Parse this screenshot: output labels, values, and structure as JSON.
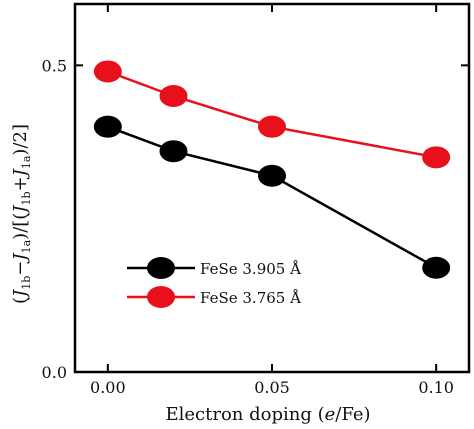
{
  "chart_data": {
    "type": "line",
    "x": [
      0.0,
      0.02,
      0.05,
      0.1
    ],
    "xlim": [
      -0.01,
      0.11
    ],
    "ylim": [
      0.0,
      0.6
    ],
    "xticks": [
      0.0,
      0.05,
      0.1
    ],
    "xtick_labels": [
      "0.00",
      "0.05",
      "0.10"
    ],
    "yticks": [
      0.0,
      0.5
    ],
    "ytick_labels": [
      "0.0",
      "0.5"
    ],
    "xlabel": "Electron doping (e/Fe)",
    "ylabel": "(J1b−J1a)/[(J1b+J1a)/2]",
    "grid": false,
    "legend_position": "lower-left",
    "series": [
      {
        "name": "FeSe 3.905 Å",
        "color": "#000000",
        "values": [
          0.4,
          0.36,
          0.32,
          0.17
        ]
      },
      {
        "name": "FeSe 3.765 Å",
        "color": "#e8101a",
        "values": [
          0.49,
          0.45,
          0.4,
          0.35
        ]
      }
    ]
  }
}
